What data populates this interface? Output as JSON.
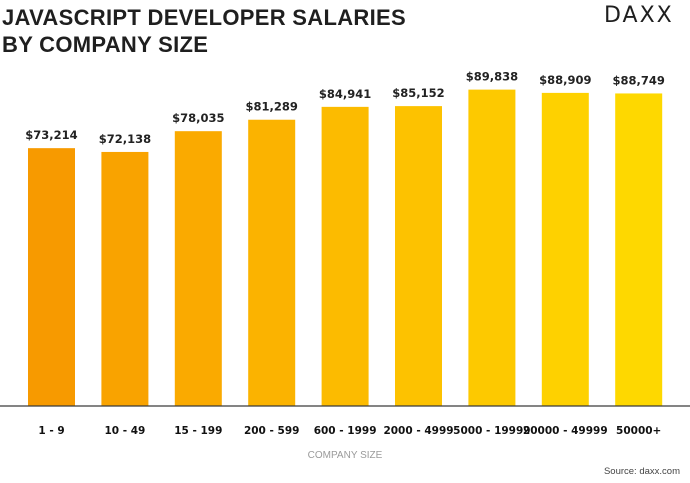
{
  "header": {
    "title": "JAVASCRIPT DEVELOPER SALARIES\nBY COMPANY SIZE",
    "logo_text": "DAXX"
  },
  "footer": {
    "source": "Source: daxx.com"
  },
  "chart_data": {
    "type": "bar",
    "title": "JAVASCRIPT DEVELOPER SALARIES BY COMPANY SIZE",
    "xlabel": "COMPANY SIZE",
    "ylabel": "",
    "categories": [
      "1 - 9",
      "10 - 49",
      "15 - 199",
      "200 - 599",
      "600 - 1999",
      "2000 - 4999",
      "5000 - 19999",
      "20000 - 49999",
      "50000+"
    ],
    "values": [
      73214,
      72138,
      78035,
      81289,
      84941,
      85152,
      89838,
      88909,
      88749
    ],
    "value_labels": [
      "$73,214",
      "$72,138",
      "$78,035",
      "$81,289",
      "$84,941",
      "$85,152",
      "$89,838",
      "$88,909",
      "$88,749"
    ],
    "ylim": [
      0,
      92000
    ],
    "grid": false,
    "legend": "none",
    "colors": [
      "#f79a00",
      "#f9a300",
      "#faaa00",
      "#fbb300",
      "#fcbb00",
      "#fdc200",
      "#fdc900",
      "#fed100",
      "#fed800"
    ]
  }
}
